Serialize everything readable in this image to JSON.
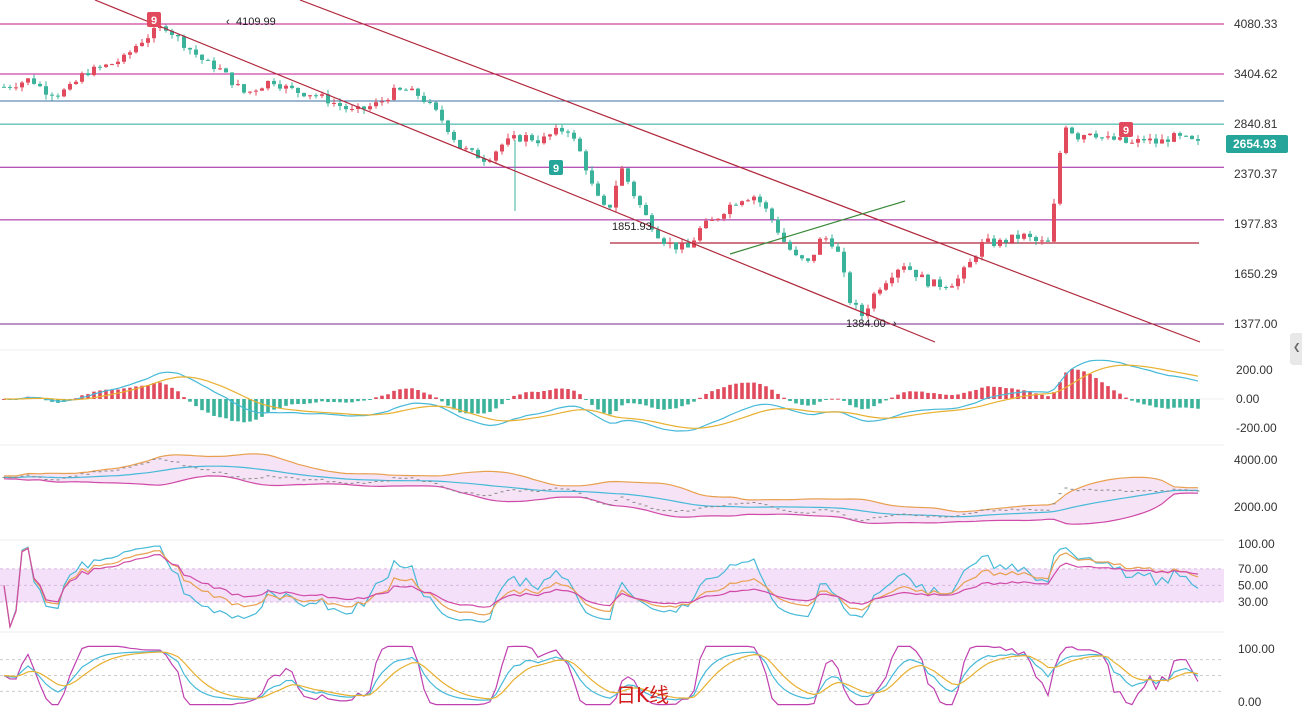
{
  "chart_data": {
    "type": "candlestick",
    "title": "",
    "watermark": "日K线",
    "colors": {
      "up": "#e14a5c",
      "down": "#3bb39a",
      "price_tag": "#26a69a",
      "level": "#c0148c",
      "channel": "#b0283c"
    },
    "main_panel": {
      "ylim": [
        1270,
        4300
      ],
      "y_ticks": [
        1377.0,
        1650.29,
        1977.83,
        2370.37,
        2840.81,
        3404.62,
        4080.33
      ],
      "y_tick_labels": [
        "1377.00",
        "1650.29",
        "1977.83",
        "2370.37",
        "2840.81",
        "3404.62",
        "4080.33"
      ],
      "current_price": 2654.93,
      "current_price_label": "2654.93",
      "high_label": "4109.99",
      "low_label": "1384.00",
      "mid_label": "1851.93",
      "badges": [
        "9",
        "9",
        "9"
      ],
      "horizontal_levels": [
        4080,
        3404,
        3100,
        2840,
        2434,
        2010,
        1377
      ],
      "close_path": [
        3260,
        3300,
        3350,
        3220,
        3180,
        3250,
        3420,
        3480,
        3540,
        3620,
        3820,
        3950,
        4060,
        3880,
        3720,
        3560,
        3480,
        3320,
        3180,
        3260,
        3340,
        3250,
        3200,
        3180,
        3120,
        3050,
        2980,
        3020,
        3080,
        3200,
        3220,
        3160,
        3010,
        2820,
        2620,
        2560,
        2500,
        2640,
        2700,
        2720,
        2680,
        2760,
        2800,
        2560,
        2220,
        2060,
        2430,
        2200,
        2010,
        1880,
        1830,
        1820,
        1960,
        2010,
        2120,
        2180,
        2200,
        2060,
        1880,
        1760,
        1720,
        1900,
        1840,
        1510,
        1420,
        1560,
        1640,
        1720,
        1650,
        1600,
        1590,
        1610,
        1720,
        1860,
        1850,
        1880,
        1900,
        1860,
        1850,
        2860,
        2720,
        2780,
        2700,
        2690,
        2650,
        2700,
        2660,
        2720,
        2700,
        2655
      ],
      "channel_upper": [
        [
          300,
          0
        ],
        [
          1200,
          342
        ]
      ],
      "channel_lower": [
        [
          95,
          0
        ],
        [
          935,
          342
        ]
      ]
    },
    "macd_panel": {
      "y_ticks": [
        -200,
        0,
        200
      ],
      "y_tick_labels": [
        "-200.00",
        "0.00",
        "200.00"
      ]
    },
    "boll_panel": {
      "y_ticks": [
        2000,
        4000
      ],
      "y_tick_labels": [
        "2000.00",
        "4000.00"
      ]
    },
    "rsi_panel": {
      "y_ticks": [
        30,
        50,
        70,
        100
      ],
      "y_tick_labels": [
        "30.00",
        "50.00",
        "70.00",
        "100.00"
      ]
    },
    "kdj_panel": {
      "y_ticks": [
        0,
        100
      ],
      "y_tick_labels": [
        "0.00",
        "100.00"
      ]
    }
  }
}
